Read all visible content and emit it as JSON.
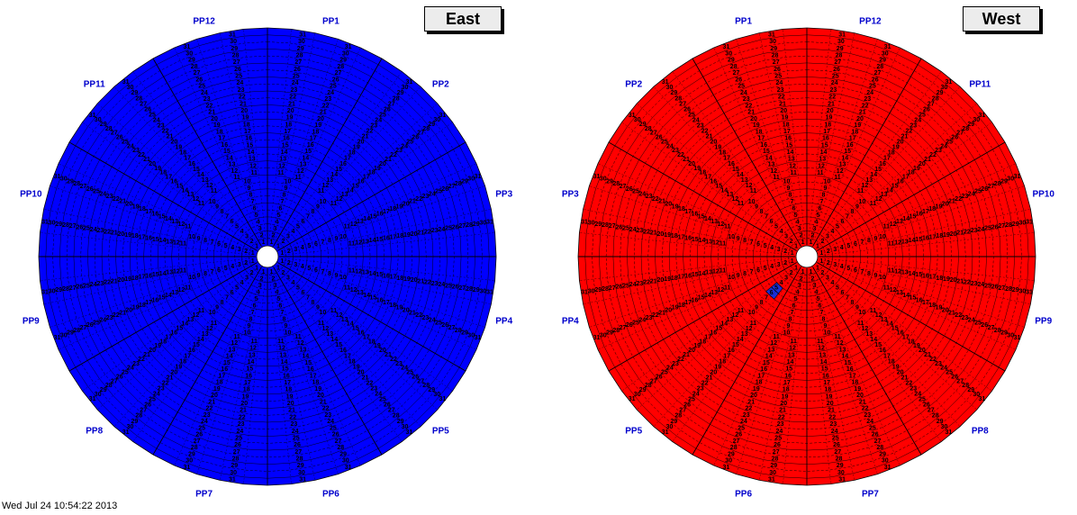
{
  "footer_text": "Wed Jul 24 10:54:22 2013",
  "chart_data": [
    {
      "type": "heatmap",
      "title": "East",
      "fill_color": "#0000ff",
      "sector_labels": [
        "PP1",
        "PP2",
        "PP3",
        "PP4",
        "PP5",
        "PP6",
        "PP7",
        "PP8",
        "PP9",
        "PP10",
        "PP11",
        "PP12"
      ],
      "sector_order": "clockwise",
      "rings": 31,
      "highlighted_cells": []
    },
    {
      "type": "heatmap",
      "title": "West",
      "fill_color": "#ff0000",
      "highlight_color": "#1a2fd8",
      "sector_labels": [
        "PP1",
        "PP2",
        "PP3",
        "PP4",
        "PP5",
        "PP6",
        "PP7",
        "PP8",
        "PP9",
        "PP10",
        "PP11",
        "PP12"
      ],
      "sector_order": "counterclockwise",
      "rings": 31,
      "highlighted_cells": [
        {
          "sector": "PP5",
          "ring": 5
        },
        {
          "sector": "PP5",
          "ring": 6
        }
      ]
    }
  ],
  "label_color": "#0000cc"
}
